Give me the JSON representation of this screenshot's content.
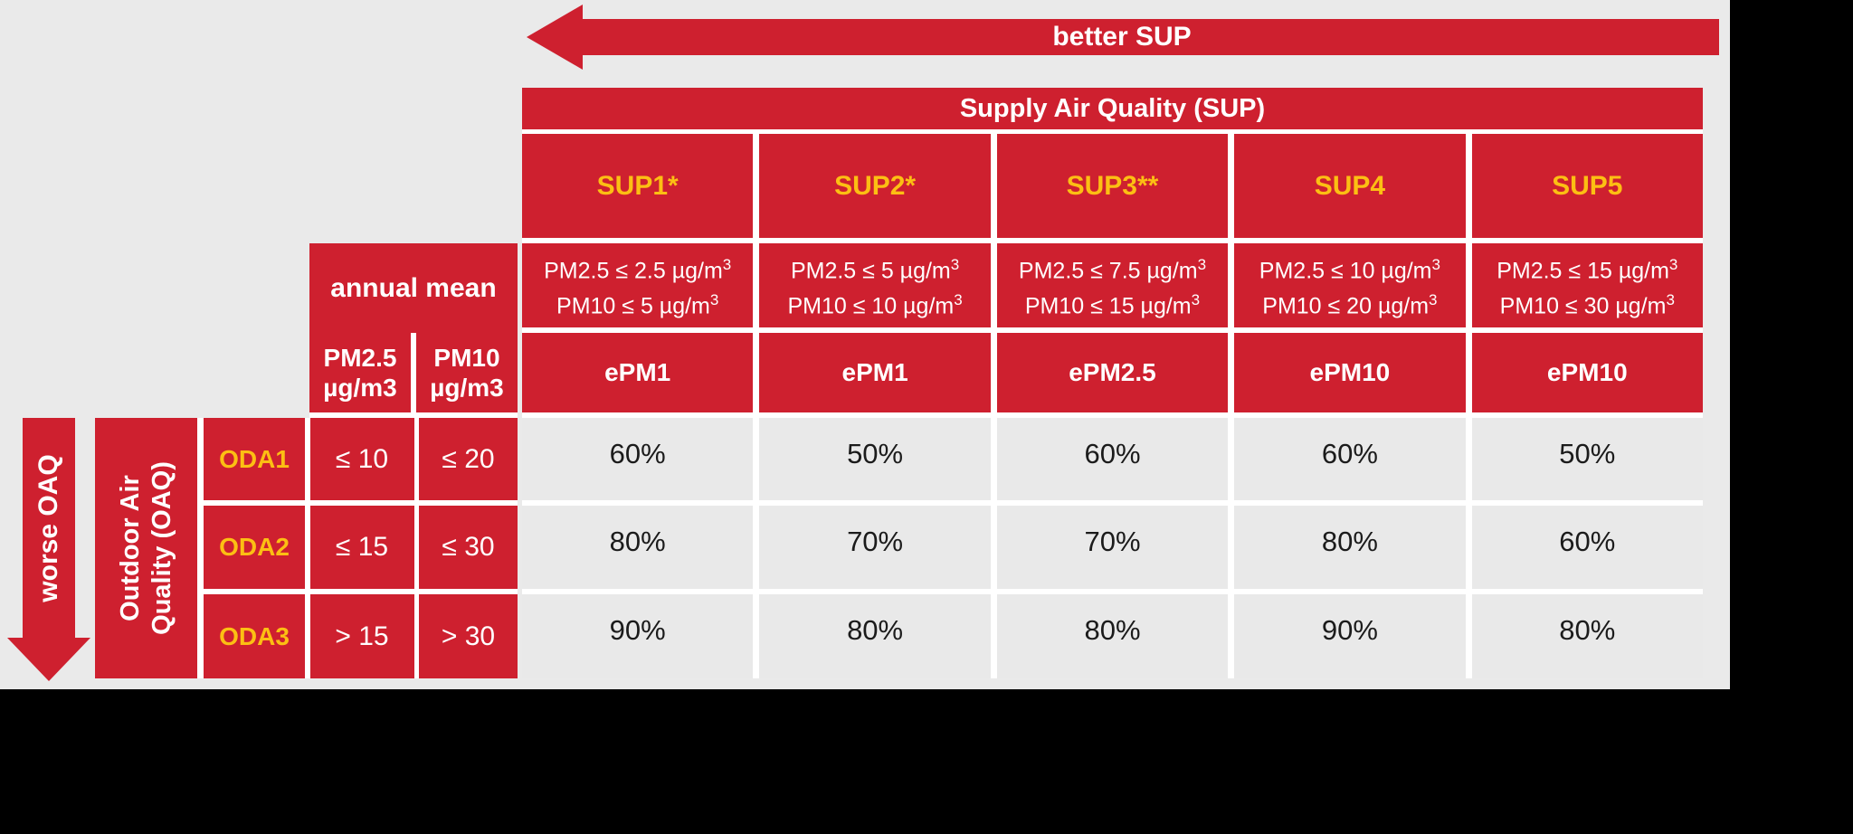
{
  "colors": {
    "red": "#ce202f",
    "yellow": "#fcbf13",
    "bg_gray": "#eaeaea",
    "cell_gray": "#e9e9e9"
  },
  "arrows": {
    "better_sup": "better SUP",
    "worse_oaq": "worse OAQ"
  },
  "sup_header": "Supply Air Quality (SUP)",
  "superscript": "3",
  "oaq_header": {
    "line1": "Outdoor Air",
    "line2": "Quality (OAQ)"
  },
  "annual_mean": {
    "title": "annual mean",
    "pm25_line1": "PM2.5",
    "pm25_line2": "µg/m3",
    "pm10_line1": "PM10",
    "pm10_line2": "µg/m3"
  },
  "sup_columns": [
    {
      "label": "SUP1*",
      "pm25": "PM2.5 ≤ 2.5 µg/m",
      "pm10": "PM10 ≤ 5 µg/m",
      "epm": "ePM1"
    },
    {
      "label": "SUP2*",
      "pm25": "PM2.5 ≤ 5 µg/m",
      "pm10": "PM10 ≤ 10 µg/m",
      "epm": "ePM1"
    },
    {
      "label": "SUP3**",
      "pm25": "PM2.5 ≤ 7.5 µg/m",
      "pm10": "PM10 ≤ 15 µg/m",
      "epm": "ePM2.5"
    },
    {
      "label": "SUP4",
      "pm25": "PM2.5 ≤ 10 µg/m",
      "pm10": "PM10 ≤ 20 µg/m",
      "epm": "ePM10"
    },
    {
      "label": "SUP5",
      "pm25": "PM2.5 ≤ 15 µg/m",
      "pm10": "PM10 ≤ 30 µg/m",
      "epm": "ePM10"
    }
  ],
  "oda_rows": [
    {
      "label": "ODA1",
      "pm25": "≤ 10",
      "pm10": "≤ 20",
      "values": [
        "60%",
        "50%",
        "60%",
        "60%",
        "50%"
      ]
    },
    {
      "label": "ODA2",
      "pm25": "≤ 15",
      "pm10": "≤ 30",
      "values": [
        "80%",
        "70%",
        "70%",
        "80%",
        "60%"
      ]
    },
    {
      "label": "ODA3",
      "pm25": "> 15",
      "pm10": "> 30",
      "values": [
        "90%",
        "80%",
        "80%",
        "90%",
        "80%"
      ]
    }
  ]
}
